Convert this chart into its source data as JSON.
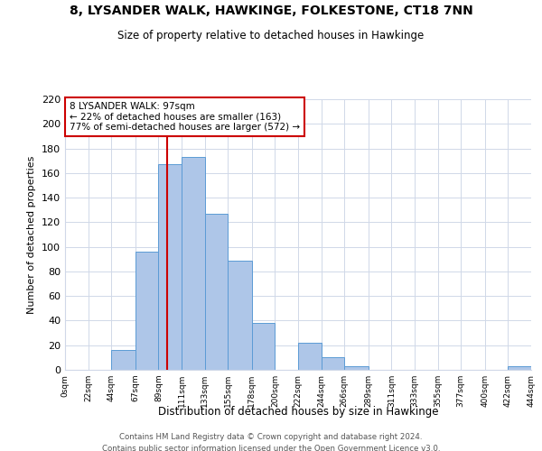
{
  "title1": "8, LYSANDER WALK, HAWKINGE, FOLKESTONE, CT18 7NN",
  "title2": "Size of property relative to detached houses in Hawkinge",
  "xlabel": "Distribution of detached houses by size in Hawkinge",
  "ylabel": "Number of detached properties",
  "bin_edges": [
    0,
    22,
    44,
    67,
    89,
    111,
    133,
    155,
    178,
    200,
    222,
    244,
    266,
    289,
    311,
    333,
    355,
    377,
    400,
    422,
    444
  ],
  "bin_labels": [
    "0sqm",
    "22sqm",
    "44sqm",
    "67sqm",
    "89sqm",
    "111sqm",
    "133sqm",
    "155sqm",
    "178sqm",
    "200sqm",
    "222sqm",
    "244sqm",
    "266sqm",
    "289sqm",
    "311sqm",
    "333sqm",
    "355sqm",
    "377sqm",
    "400sqm",
    "422sqm",
    "444sqm"
  ],
  "counts": [
    0,
    0,
    16,
    96,
    167,
    173,
    127,
    89,
    38,
    0,
    22,
    10,
    3,
    0,
    0,
    0,
    0,
    0,
    0,
    3
  ],
  "bar_color": "#aec6e8",
  "bar_edge_color": "#5b9bd5",
  "property_line_x": 97,
  "ylim": [
    0,
    220
  ],
  "yticks": [
    0,
    20,
    40,
    60,
    80,
    100,
    120,
    140,
    160,
    180,
    200,
    220
  ],
  "annotation_title": "8 LYSANDER WALK: 97sqm",
  "annotation_line1": "← 22% of detached houses are smaller (163)",
  "annotation_line2": "77% of semi-detached houses are larger (572) →",
  "annotation_box_color": "#ffffff",
  "annotation_box_edge_color": "#cc0000",
  "footer1": "Contains HM Land Registry data © Crown copyright and database right 2024.",
  "footer2": "Contains public sector information licensed under the Open Government Licence v3.0.",
  "grid_color": "#d0d8e8",
  "line_color": "#cc0000",
  "background_color": "#ffffff"
}
